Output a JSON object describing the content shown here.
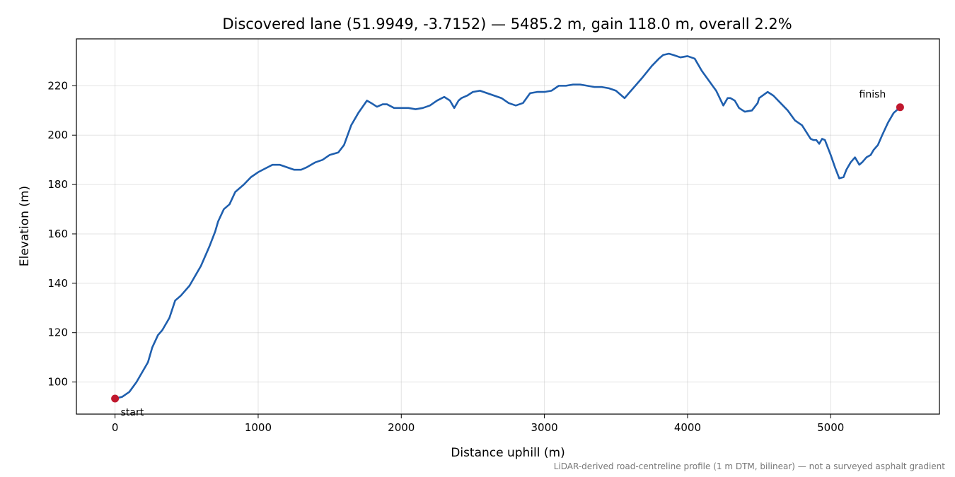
{
  "chart_data": {
    "type": "line",
    "title": "Discovered lane (51.9949, -3.7152) — 5485.2 m, gain 118.0 m, overall 2.2%",
    "xlabel": "Distance uphill (m)",
    "ylabel": "Elevation (m)",
    "xlim": [
      -270,
      5760
    ],
    "ylim": [
      87,
      239
    ],
    "xticks": [
      0,
      1000,
      2000,
      3000,
      4000,
      5000
    ],
    "yticks": [
      100,
      120,
      140,
      160,
      180,
      200,
      220
    ],
    "grid": true,
    "line_color": "#1f5fae",
    "marker_color": "#c0182e",
    "footnote": "LiDAR-derived road-centreline profile (1 m DTM, bilinear) — not a surveyed asphalt gradient",
    "annotations": [
      {
        "text": "start",
        "x": 0,
        "y": 93.3
      },
      {
        "text": "finish",
        "x": 5485.2,
        "y": 211.3
      }
    ],
    "series": [
      {
        "x": [
          0,
          50,
          100,
          150,
          200,
          230,
          260,
          300,
          330,
          380,
          420,
          460,
          520,
          600,
          660,
          700,
          720,
          760,
          800,
          840,
          880,
          900,
          950,
          1000,
          1050,
          1100,
          1150,
          1200,
          1250,
          1300,
          1340,
          1400,
          1450,
          1500,
          1560,
          1600,
          1650,
          1700,
          1760,
          1790,
          1830,
          1870,
          1900,
          1950,
          2000,
          2050,
          2100,
          2150,
          2200,
          2250,
          2300,
          2340,
          2370,
          2400,
          2420,
          2460,
          2500,
          2550,
          2600,
          2650,
          2700,
          2750,
          2800,
          2850,
          2900,
          2950,
          3000,
          3050,
          3100,
          3150,
          3200,
          3250,
          3300,
          3350,
          3400,
          3450,
          3500,
          3560,
          3620,
          3680,
          3750,
          3800,
          3830,
          3870,
          3900,
          3950,
          4000,
          4050,
          4100,
          4150,
          4200,
          4250,
          4280,
          4300,
          4330,
          4360,
          4400,
          4450,
          4490,
          4500,
          4560,
          4600,
          4650,
          4700,
          4750,
          4800,
          4860,
          4880,
          4900,
          4920,
          4940,
          4960,
          5000,
          5030,
          5060,
          5090,
          5110,
          5140,
          5170,
          5200,
          5220,
          5250,
          5280,
          5300,
          5330,
          5360,
          5400,
          5440,
          5485.2
        ],
        "y": [
          93.3,
          94,
          96,
          100,
          105,
          108,
          114,
          119,
          121,
          126,
          133,
          135,
          139,
          147,
          155,
          161,
          165,
          170,
          172,
          177,
          179,
          180,
          183,
          185,
          186.5,
          188,
          188,
          187,
          186,
          186,
          187,
          189,
          190,
          192,
          193,
          196,
          204,
          209,
          214,
          213,
          211.5,
          212.5,
          212.5,
          211,
          211,
          211,
          210.5,
          211,
          212,
          214,
          215.5,
          214,
          211,
          214,
          215,
          216,
          217.5,
          218,
          217,
          216,
          215,
          213,
          212,
          213,
          217,
          217.5,
          217.5,
          218,
          220,
          220,
          220.5,
          220.5,
          220,
          219.5,
          219.5,
          219,
          218,
          215,
          219,
          223,
          228,
          231,
          232.5,
          233,
          232.5,
          231.5,
          232,
          231,
          226,
          222,
          218,
          212,
          215,
          215,
          214,
          211,
          209.5,
          210,
          213,
          215,
          217.5,
          216,
          213,
          210,
          206,
          204,
          198.5,
          198,
          198,
          196.5,
          198.5,
          198,
          192,
          187,
          182.5,
          183,
          186,
          189,
          191,
          188,
          189,
          191,
          192,
          194,
          196,
          200,
          205,
          209,
          211.3
        ]
      }
    ]
  }
}
